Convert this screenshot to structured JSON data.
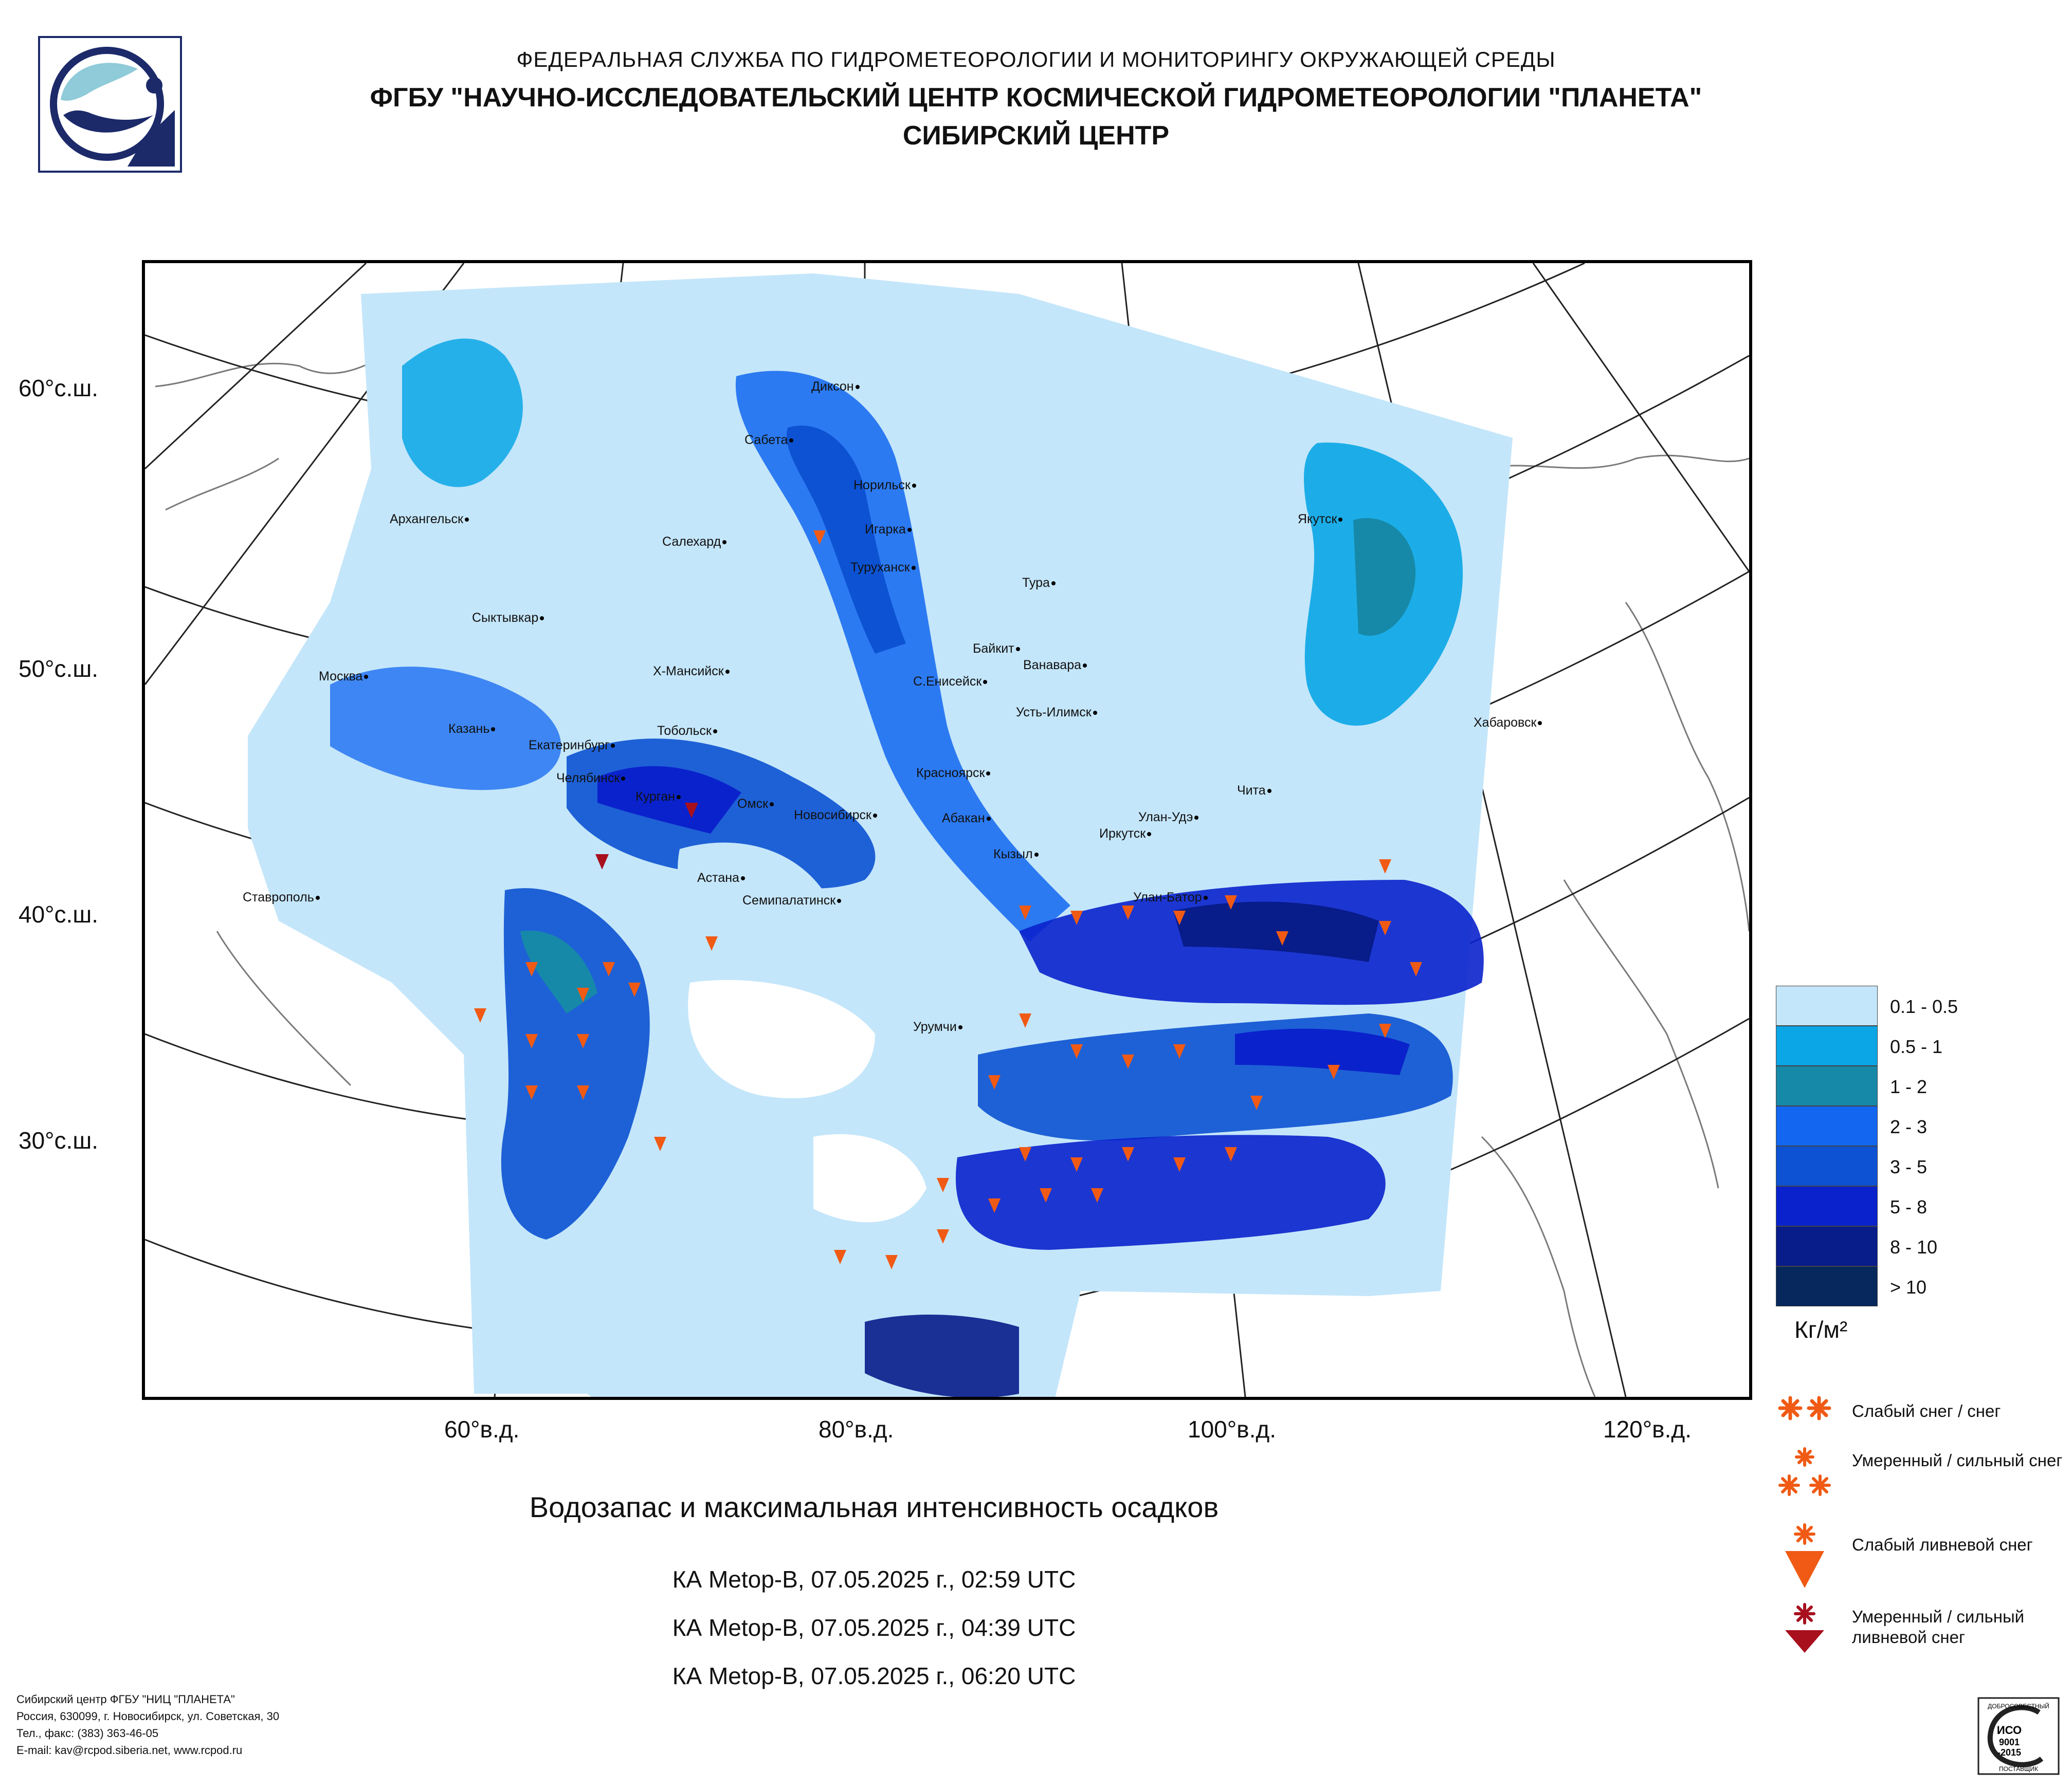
{
  "header": {
    "line1": "ФЕДЕРАЛЬНАЯ СЛУЖБА ПО ГИДРОМЕТЕОРОЛОГИИ И МОНИТОРИНГУ ОКРУЖАЮЩЕЙ СРЕДЫ",
    "line2": "ФГБУ \"НАУЧНО-ИССЛЕДОВАТЕЛЬСКИЙ ЦЕНТР КОСМИЧЕСКОЙ ГИДРОМЕТЕОРОЛОГИИ \"ПЛАНЕТА\"",
    "line3": "СИБИРСКИЙ ЦЕНТР"
  },
  "map": {
    "lat_labels": [
      "60°с.ш.",
      "50°с.ш.",
      "40°с.ш.",
      "30°с.ш."
    ],
    "lon_labels": [
      "60°в.д.",
      "80°в.д.",
      "100°в.д.",
      "120°в.д."
    ],
    "cities": [
      "Диксон",
      "Сабета",
      "Норильск",
      "Архангельск",
      "Игарка",
      "Салехард",
      "Якутск",
      "Туруханск",
      "Тура",
      "Сыктывкар",
      "Байкит",
      "Ванавара",
      "Москва",
      "Х-Мансийск",
      "С.Енисейск",
      "Усть-Илимск",
      "Хабаровск",
      "Казань",
      "Тобольск",
      "Екатеринбург",
      "Красноярск",
      "Челябинск",
      "Чита",
      "Курган",
      "Омск",
      "Новосибирск",
      "Абакан",
      "Улан-Удэ",
      "Иркутск",
      "Кызыл",
      "Ставрополь",
      "Астана",
      "Семипалатинск",
      "Улан-Батор",
      "Урумчи"
    ]
  },
  "legend": {
    "scale": [
      {
        "label": "0.1 - 0.5",
        "color": "#c4e6fa"
      },
      {
        "label": "0.5 - 1",
        "color": "#0aa6e6"
      },
      {
        "label": "1 - 2",
        "color": "#1689a8"
      },
      {
        "label": "2 - 3",
        "color": "#1266f0"
      },
      {
        "label": "3 - 5",
        "color": "#0c52d2"
      },
      {
        "label": "5 - 8",
        "color": "#0a22cc"
      },
      {
        "label": "8 - 10",
        "color": "#081c8a"
      },
      {
        "label": "> 10",
        "color": "#06285c"
      }
    ],
    "unit": "Кг/м²",
    "symbols": [
      {
        "label": "Слабый снег / снег",
        "icon": "double-snow-star-icon",
        "color": "#f05a14"
      },
      {
        "label": "Умеренный / сильный снег",
        "icon": "triple-snow-star-icon",
        "color": "#f05a14"
      },
      {
        "label": "Слабый ливневой снег",
        "icon": "snow-shower-light-icon",
        "color": "#f05a14"
      },
      {
        "label": "Умеренный / сильный ливневой снег",
        "icon": "snow-shower-heavy-icon",
        "color": "#a8101e"
      }
    ]
  },
  "title": "Водозапас и максимальная интенсивность осадков",
  "passes": [
    "КА Metop-B, 07.05.2025 г., 02:59 UTC",
    "КА Metop-B, 07.05.2025 г., 04:39 UTC",
    "КА Metop-B, 07.05.2025 г., 06:20 UTC"
  ],
  "footer": {
    "org": "Сибирский центр ФГБУ \"НИЦ \"ПЛАНЕТА\"",
    "address": "Россия, 630099, г. Новосибирск, ул. Советская, 30",
    "phone": "Тел., факс: (383) 363-46-05",
    "email": "E-mail: kav@rcpod.siberia.net, www.rcpod.ru"
  },
  "iso_badge": {
    "top": "ДОБРОСОВЕСТНЫЙ",
    "mid1": "ИСО",
    "mid2": "9001",
    "mid3": "-2015",
    "bottom": "ПОСТАВЩИК"
  }
}
